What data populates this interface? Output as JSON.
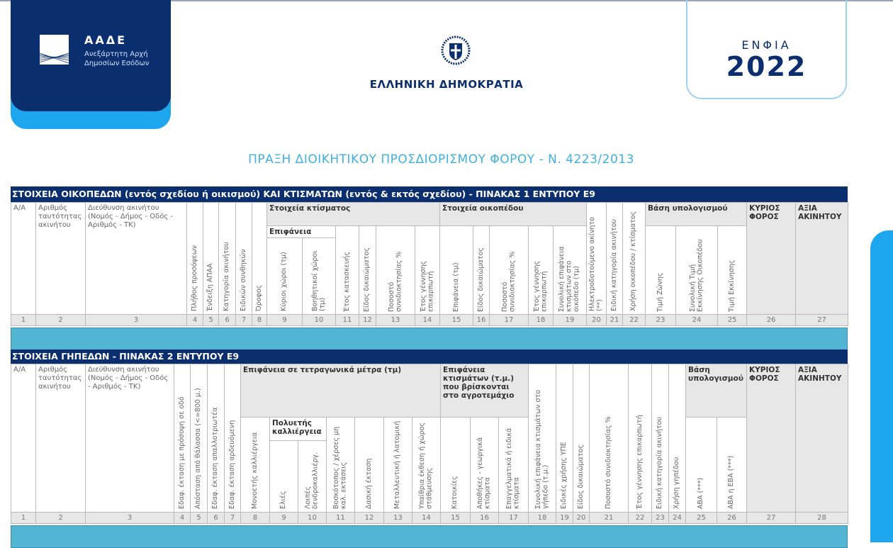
{
  "logo": {
    "abbr": "ΑΑΔΕ",
    "line1": "Ανεξάρτητη Αρχή",
    "line2": "Δημοσίων Εσόδων"
  },
  "republic": "ΕΛΛΗΝΙΚΗ ΔΗΜΟΚΡΑΤΙΑ",
  "badge": {
    "label": "ΕΝΦΙΑ",
    "year": "2022"
  },
  "doc_title": "ΠΡΑΞΗ ΔΙΟΙΚΗΤΙΚΟΥ ΠΡΟΣΔΙΟΡΙΣΜΟΥ ΦΟΡΟΥ - Ν. 4223/2013",
  "colors": {
    "navy": "#0b2e6e",
    "light_blue": "#1ea6ee",
    "teal_row": "#52b5d3",
    "title_blue": "#40b0e4"
  },
  "table1": {
    "title": "ΣΤΟΙΧΕΙΑ ΟΙΚΟΠΕΔΩΝ (εντός σχεδίου ή οικισμού) ΚΑΙ ΚΤΙΣΜΑΤΩΝ (εντός & εκτός σχεδίου) - ΠΙΝΑΚΑΣ 1 ΕΝΤΥΠΟΥ Ε9",
    "groups": {
      "building": "Στοιχεία κτίσματος",
      "surface": "Επιφάνεια",
      "plot": "Στοιχεία οικοπέδου",
      "basis": "Βάση υπολογισμού"
    },
    "cols": [
      "Α/Α",
      "Αριθμός ταυτότητας ακινήτου",
      "Διεύθυνση ακινήτου (Νομός - Δήμος - Οδός - Αριθμός - ΤΚ)",
      "Πλήθος προσόψεων",
      "Ένδειξη ΑΠΑΑ",
      "Κατηγορία ακινήτου",
      "Ειδικών συνθηκών",
      "Όροφος",
      "Κύριοι χώροι (τμ)",
      "Βοηθητικοί χώροι (τμ)",
      "Έτος κατασκευής",
      "Είδος δικαιώματος",
      "Ποσοστό συνιδιοκτησίας %",
      "Έτος γέννησης επικαρπωτή",
      "Επιφάνεια (τμ)",
      "Είδος δικαιώματος",
      "Ποσοστό συνιδιοκτησίας %",
      "Έτος γέννησης επικαρπωτή",
      "Συνολική επιφάνεια κτισμάτων στο οικόπεδο (τμ)",
      "Ηλεκτροδοτούμενο ακίνητο (**)",
      "Ειδική κατηγορία ακινήτου",
      "Χρήση οικοπέδου / κτίσματος",
      "Τιμή Ζώνης",
      "Συνολική Τιμή Εκκίνησης Οικοπέδου",
      "Τιμή Εκκίνησης",
      "ΚΥΡΙΟΣ ΦΟΡΟΣ",
      "ΑΞΙΑ ΑΚΙΝΗΤΟΥ"
    ],
    "numbers": [
      "1",
      "2",
      "3",
      "4",
      "5",
      "6",
      "7",
      "8",
      "9",
      "10",
      "11",
      "12",
      "13",
      "14",
      "15",
      "16",
      "17",
      "18",
      "19",
      "20",
      "21",
      "22",
      "23",
      "24",
      "25",
      "26",
      "27"
    ]
  },
  "table2": {
    "title": "ΣΤΟΙΧΕΙΑ ΓΗΠΕΔΩΝ - ΠΙΝΑΚΑΣ 2 ΕΝΤΥΠΟΥ Ε9",
    "groups": {
      "area": "Επιφάνεια σε τετραγωνικά μέτρα (τμ)",
      "perennial": "Πολυετής καλλιέργεια",
      "buildings": "Επιφάνεια κτισμάτων (τ.μ.) που βρίσκονται στο αγροτεμάχιο",
      "basis": "Βάση υπολογισμού"
    },
    "cols": [
      "Α/Α",
      "Αριθμός ταυτότητας ακινήτου",
      "Διεύθυνση ακινήτου (Νομός - Δήμος - Οδός - Αριθμός - ΤΚ)",
      "Εδαφ. έκταση με πρόσοψη σε οδό",
      "Απόσταση από θάλασσα (<=800 μ.)",
      "Εδαφ. έκταση απαλλοτριωτέα",
      "Εδαφ. έκταση αρδευόμενη",
      "Μονοετής καλλιέργεια",
      "Ελιές",
      "Λοιπές δενδροκαλλιέργ.",
      "Βοσκότοπος / χέρσες μη καλ. εκτάσεις",
      "Δασική έκταση",
      "Μεταλλευτική ή λατομική",
      "Υπαίθρια έκθεση ή χώρος στάθμευσης",
      "Κατοικίες",
      "Αποθήκες - γεωργικά κτίσματα",
      "Επαγγελματικά ή ειδικά κτίσματα",
      "Συνολική επιφάνεια κτισμάτων στο γήπεδο (τ.μ.)",
      "Ειδικές χρήσης ΥΠΕ",
      "Είδος δικαιώματος",
      "Ποσοστό συνιδιοκτησίας %",
      "Έτος γέννησης επικαρπωτή",
      "Ειδική κατηγορία ακινήτου",
      "Χρήση γηπέδου",
      "ΑΒΑ (***)",
      "ΑΒΑ η ΕΒΑ (***)",
      "ΚΥΡΙΟΣ ΦΟΡΟΣ",
      "ΑΞΙΑ ΑΚΙΝΗΤΟΥ"
    ],
    "numbers": [
      "1",
      "2",
      "3",
      "4",
      "5",
      "6",
      "7",
      "8",
      "9",
      "10",
      "11",
      "12",
      "13",
      "14",
      "15",
      "16",
      "17",
      "18",
      "19",
      "20",
      "21",
      "22",
      "23",
      "24",
      "25",
      "26",
      "27",
      "28"
    ]
  }
}
